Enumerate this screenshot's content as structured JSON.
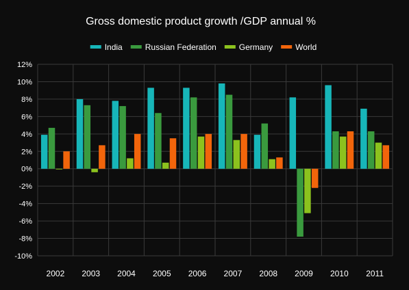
{
  "chart_data": {
    "type": "bar",
    "title": "Gross domestic product growth /GDP annual %",
    "xlabel": "",
    "ylabel": "",
    "categories": [
      "2002",
      "2003",
      "2004",
      "2005",
      "2006",
      "2007",
      "2008",
      "2009",
      "2010",
      "2011"
    ],
    "series": [
      {
        "name": "India",
        "color": "#17b6b9",
        "values": [
          3.9,
          8.0,
          7.8,
          9.3,
          9.3,
          9.8,
          3.9,
          8.2,
          9.6,
          6.9
        ]
      },
      {
        "name": "Russian Federation",
        "color": "#3a9a3e",
        "values": [
          4.7,
          7.3,
          7.2,
          6.4,
          8.2,
          8.5,
          5.2,
          -7.8,
          4.3,
          4.3
        ]
      },
      {
        "name": "Germany",
        "color": "#8cc21e",
        "values": [
          0.0,
          -0.4,
          1.2,
          0.7,
          3.7,
          3.3,
          1.1,
          -5.1,
          3.7,
          3.0
        ]
      },
      {
        "name": "World",
        "color": "#f2650b",
        "values": [
          2.0,
          2.7,
          4.0,
          3.5,
          4.0,
          4.0,
          1.3,
          -2.2,
          4.3,
          2.7
        ]
      }
    ],
    "ylim": [
      -10,
      12
    ],
    "yticks": [
      -10,
      -8,
      -6,
      -4,
      -2,
      0,
      2,
      4,
      6,
      8,
      10,
      12
    ],
    "ytick_labels": [
      "-10%",
      "-8%",
      "-6%",
      "-4%",
      "-2%",
      "0%",
      "2%",
      "4%",
      "6%",
      "8%",
      "10%",
      "12%"
    ],
    "grid": true,
    "legend_position": "top-center"
  }
}
